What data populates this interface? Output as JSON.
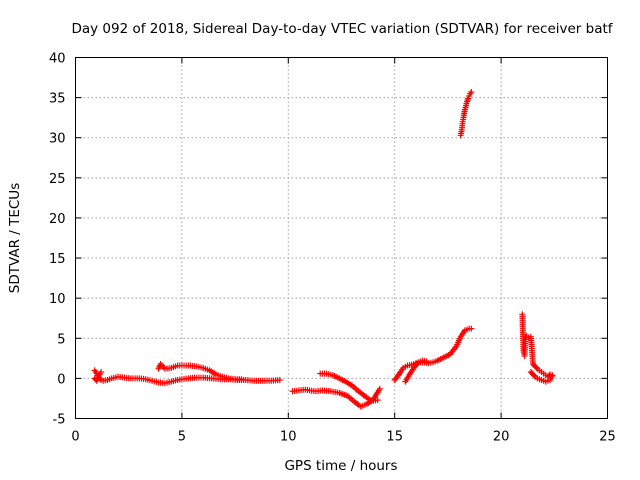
{
  "chart_data": {
    "type": "scatter",
    "title": "Day 092 of 2018, Sidereal Day-to-day VTEC variation (SDTVAR) for receiver batf",
    "xlabel": "GPS time / hours",
    "ylabel": "SDTVAR / TECUs",
    "xlim": [
      0,
      25
    ],
    "ylim": [
      -5,
      40
    ],
    "xticks": [
      0,
      5,
      10,
      15,
      20,
      25
    ],
    "yticks": [
      -5,
      0,
      5,
      10,
      15,
      20,
      25,
      30,
      35,
      40
    ],
    "xtick_labels": [
      "0",
      "5",
      "10",
      "15",
      "20",
      "25"
    ],
    "ytick_labels": [
      "-5",
      "0",
      "5",
      "10",
      "15",
      "20",
      "25",
      "30",
      "35",
      "40"
    ],
    "grid": true,
    "marker": "+",
    "color": "#ff0000",
    "series": [
      {
        "x": [
          0.9,
          1.0,
          1.1,
          1.2,
          1.3,
          1.5,
          1.7,
          2.0,
          2.3,
          2.6,
          3.0,
          3.3,
          3.6,
          3.9,
          4.2,
          4.5,
          4.8,
          5.0,
          5.3,
          5.6,
          6.0,
          6.4,
          6.8,
          7.2,
          7.6,
          8.0,
          8.4,
          8.8,
          9.2,
          9.6
        ],
        "y": [
          1.0,
          0.6,
          0.1,
          -0.2,
          -0.3,
          -0.2,
          0.0,
          0.2,
          0.1,
          0.0,
          0.0,
          -0.1,
          -0.3,
          -0.5,
          -0.6,
          -0.4,
          -0.2,
          -0.1,
          0.0,
          0.1,
          0.1,
          0.0,
          -0.1,
          -0.1,
          -0.2,
          -0.2,
          -0.3,
          -0.3,
          -0.3,
          -0.2
        ]
      },
      {
        "x": [
          0.9,
          1.0,
          1.1,
          1.2
        ],
        "y": [
          0.0,
          -0.3,
          0.3,
          0.8
        ]
      },
      {
        "x": [
          3.9,
          4.0,
          4.2,
          4.5,
          4.8,
          5.1,
          5.4,
          5.7,
          6.0,
          6.3,
          6.6,
          6.9,
          7.2,
          7.5,
          7.8
        ],
        "y": [
          1.2,
          1.8,
          1.2,
          1.3,
          1.6,
          1.6,
          1.6,
          1.5,
          1.3,
          1.0,
          0.5,
          0.2,
          0.0,
          -0.1,
          -0.1
        ]
      },
      {
        "x": [
          10.2,
          10.5,
          10.8,
          11.0,
          11.3,
          11.6,
          12.0,
          12.4,
          12.8,
          13.1,
          13.4,
          13.7,
          14.0,
          14.3
        ],
        "y": [
          -1.6,
          -1.5,
          -1.4,
          -1.5,
          -1.6,
          -1.5,
          -1.6,
          -1.8,
          -2.2,
          -2.9,
          -3.5,
          -3.2,
          -2.6,
          -1.3
        ]
      },
      {
        "x": [
          11.5,
          11.8,
          12.1,
          12.4,
          12.7,
          13.0,
          13.3,
          13.6,
          13.9,
          14.2
        ],
        "y": [
          0.6,
          0.6,
          0.4,
          0.0,
          -0.4,
          -0.9,
          -1.6,
          -2.2,
          -2.8,
          -2.7
        ]
      },
      {
        "x": [
          15.0,
          15.2,
          15.4,
          15.6,
          15.8,
          16.0,
          16.2,
          16.4,
          16.6,
          16.8,
          17.0,
          17.3,
          17.6,
          17.9,
          18.1,
          18.3,
          18.5,
          18.6
        ],
        "y": [
          -0.2,
          0.5,
          1.3,
          1.6,
          1.7,
          1.9,
          2.0,
          2.0,
          1.9,
          2.0,
          2.2,
          2.6,
          3.0,
          4.0,
          5.2,
          6.0,
          6.2,
          6.2
        ]
      },
      {
        "x": [
          15.5,
          15.7,
          15.9,
          16.1,
          16.3,
          16.5
        ],
        "y": [
          -0.4,
          0.5,
          1.3,
          2.0,
          2.2,
          2.1
        ]
      },
      {
        "x": [
          18.1,
          18.15,
          18.2,
          18.25,
          18.3,
          18.35,
          18.4,
          18.45,
          18.5,
          18.55,
          18.6
        ],
        "y": [
          30.3,
          31.0,
          32.0,
          32.8,
          33.5,
          34.0,
          34.5,
          34.9,
          35.2,
          35.5,
          35.7
        ]
      },
      {
        "x": [
          21.0,
          21.05,
          21.1,
          21.15,
          21.2,
          21.3,
          21.4,
          21.5,
          21.6,
          21.7,
          21.8,
          21.9,
          22.0,
          22.1,
          22.2,
          22.3,
          22.4
        ],
        "y": [
          8.0,
          3.5,
          2.8,
          5.1,
          5.3,
          5.1,
          5.2,
          1.8,
          1.5,
          1.2,
          1.0,
          0.8,
          0.6,
          0.4,
          0.2,
          0.5,
          0.4
        ]
      },
      {
        "x": [
          21.4,
          21.5,
          21.6,
          21.7,
          21.8,
          21.9,
          22.0,
          22.1,
          22.2,
          22.3,
          22.4
        ],
        "y": [
          0.8,
          0.5,
          0.2,
          0.0,
          -0.1,
          -0.2,
          -0.3,
          -0.4,
          -0.3,
          -0.2,
          0.3
        ]
      }
    ]
  }
}
